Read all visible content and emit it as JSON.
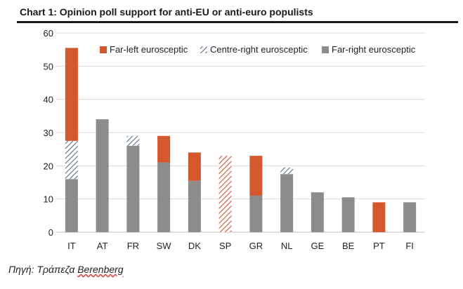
{
  "title": "Chart 1: Opinion poll support for anti-EU or anti-euro populists",
  "source_prefix": "Πηγή: Τράπεζα ",
  "source_brand": "Berenberg",
  "colors": {
    "far_left": "#d4572d",
    "centre_right": "#5b6f8a",
    "far_right": "#8c8c8c",
    "grid": "#d9d9d9"
  },
  "chart_data": {
    "type": "bar",
    "stacked": true,
    "categories": [
      "IT",
      "AT",
      "FR",
      "SW",
      "DK",
      "SP",
      "GR",
      "NL",
      "GE",
      "BE",
      "PT",
      "FI"
    ],
    "series": [
      {
        "name": "Far-right eurosceptic",
        "key": "far_right",
        "pattern": "solid",
        "values": [
          16,
          34,
          26,
          21,
          15.5,
          0,
          11,
          17.5,
          12,
          10.5,
          0,
          9
        ]
      },
      {
        "name": "Centre-right eurosceptic",
        "key": "centre_right",
        "pattern": "hatch",
        "values": [
          11.5,
          0,
          3,
          0,
          0,
          0,
          0,
          2,
          0,
          0,
          0,
          0
        ]
      },
      {
        "name": "Far-left eurosceptic",
        "key": "far_left",
        "pattern": "solid",
        "values": [
          28,
          0,
          0,
          8,
          8.5,
          0,
          12,
          0,
          0,
          0,
          9,
          0
        ]
      },
      {
        "name": "Far-left (hatched)",
        "key": "far_left",
        "pattern": "hatch",
        "legend": false,
        "values": [
          0,
          0,
          0,
          0,
          0,
          23,
          0,
          0,
          0,
          0,
          0,
          0
        ]
      }
    ],
    "legend": [
      "Far-left eurosceptic",
      "Centre-right eurosceptic",
      "Far-right eurosceptic"
    ],
    "legend_position": "top-right",
    "ylim": [
      0,
      60
    ],
    "yticks": [
      0,
      10,
      20,
      30,
      40,
      50,
      60
    ],
    "grid": true,
    "xlabel": "",
    "ylabel": ""
  }
}
